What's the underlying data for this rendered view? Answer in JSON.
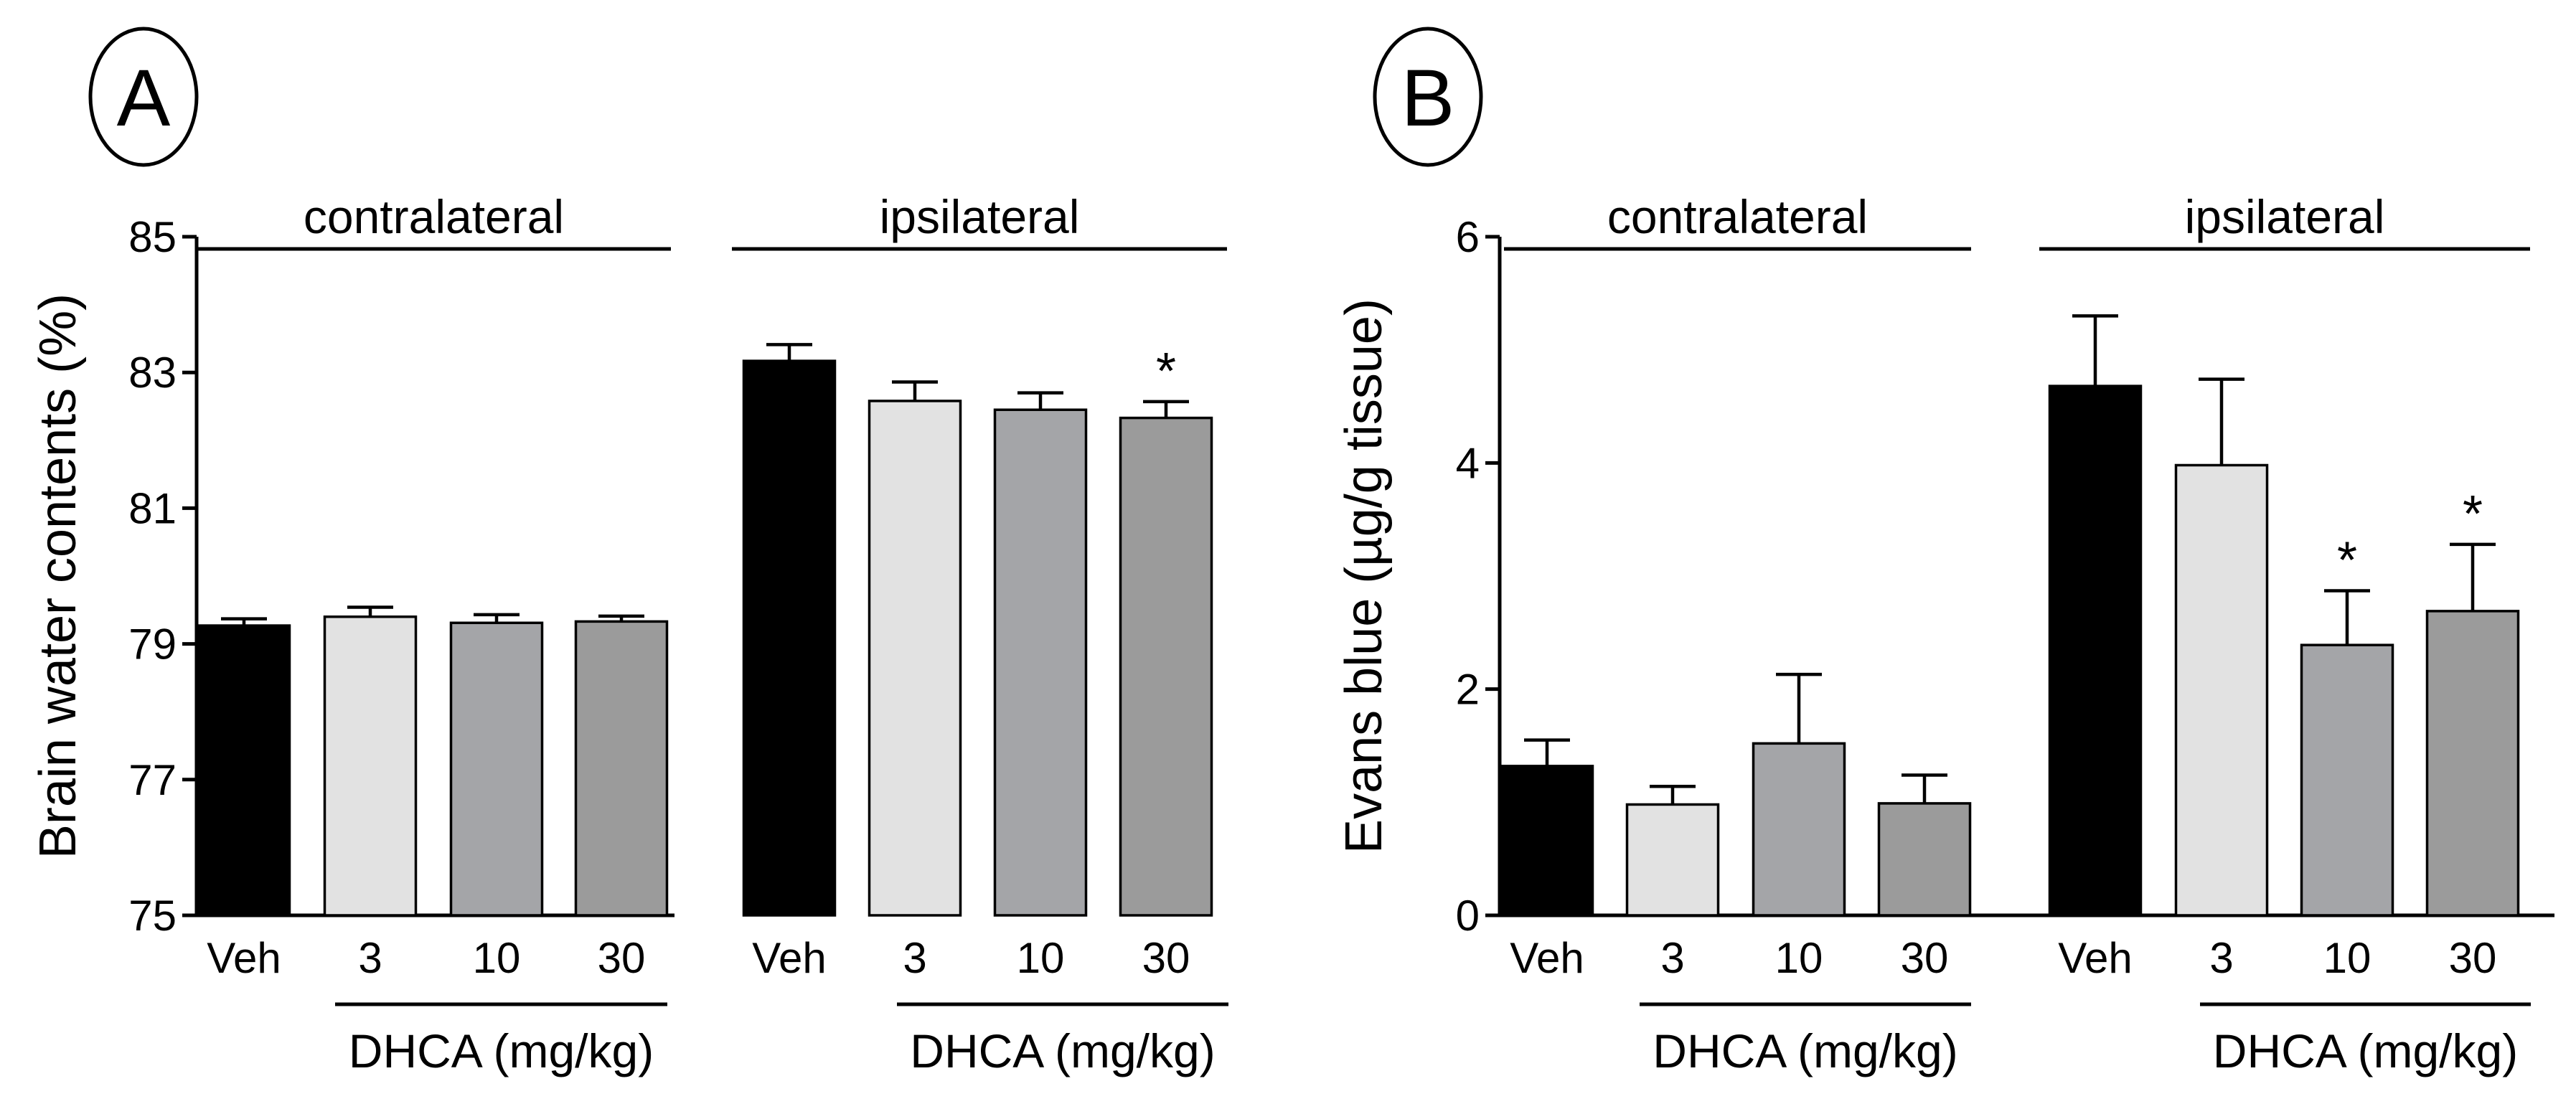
{
  "chart_data": [
    {
      "type": "bar",
      "panel_label": "A",
      "ylabel": "Brain water contents (%)",
      "ylim": [
        75,
        85
      ],
      "yticks": [
        75,
        77,
        79,
        81,
        83,
        85
      ],
      "ytick_labels": [
        "75",
        "77",
        "79",
        "81",
        "83",
        "85"
      ],
      "groups": [
        {
          "name": "contralateral",
          "treatment_label": "DHCA (mg/kg)",
          "categories": [
            "Veh",
            "3",
            "10",
            "30"
          ],
          "values": [
            79.27,
            79.4,
            79.31,
            79.33
          ],
          "errors": [
            0.1,
            0.14,
            0.12,
            0.08
          ],
          "significant": [
            false,
            false,
            false,
            false
          ]
        },
        {
          "name": "ipsilateral",
          "treatment_label": "DHCA (mg/kg)",
          "categories": [
            "Veh",
            "3",
            "10",
            "30"
          ],
          "values": [
            83.17,
            82.58,
            82.45,
            82.33
          ],
          "errors": [
            0.24,
            0.28,
            0.25,
            0.24
          ],
          "significant": [
            false,
            false,
            false,
            true
          ]
        }
      ],
      "bar_colors": [
        "#000000",
        "#e2e2e2",
        "#a4a5a8",
        "#9b9b9b"
      ],
      "significance_marker": "*"
    },
    {
      "type": "bar",
      "panel_label": "B",
      "ylabel": "Evans blue (µg/g tissue)",
      "ylim": [
        0,
        6
      ],
      "yticks": [
        0,
        2,
        4,
        6
      ],
      "ytick_labels": [
        "0",
        "2",
        "4",
        "6"
      ],
      "groups": [
        {
          "name": "contralateral",
          "treatment_label": "DHCA (mg/kg)",
          "categories": [
            "Veh",
            "3",
            "10",
            "30"
          ],
          "values": [
            1.32,
            0.98,
            1.52,
            0.99
          ],
          "errors": [
            0.23,
            0.16,
            0.61,
            0.25
          ],
          "significant": [
            false,
            false,
            false,
            false
          ]
        },
        {
          "name": "ipsilateral",
          "treatment_label": "DHCA (mg/kg)",
          "categories": [
            "Veh",
            "3",
            "10",
            "30"
          ],
          "values": [
            4.68,
            3.98,
            2.39,
            2.69
          ],
          "errors": [
            0.62,
            0.76,
            0.48,
            0.59
          ],
          "significant": [
            false,
            false,
            true,
            true
          ]
        }
      ],
      "bar_colors": [
        "#000000",
        "#e2e2e2",
        "#a4a5a8",
        "#9b9b9b"
      ],
      "significance_marker": "*"
    }
  ]
}
